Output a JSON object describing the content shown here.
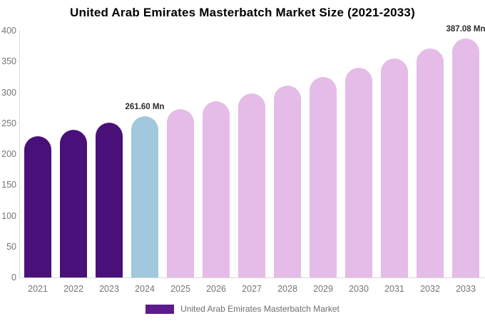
{
  "title": "United Arab Emirates Masterbatch Market Size (2021-2033)",
  "chart_data": {
    "type": "bar",
    "title": "United Arab Emirates Masterbatch Market Size (2021-2033)",
    "categories": [
      "2021",
      "2022",
      "2023",
      "2024",
      "2025",
      "2026",
      "2027",
      "2028",
      "2029",
      "2030",
      "2031",
      "2032",
      "2033"
    ],
    "values": [
      229.5,
      239.8,
      250.4,
      261.6,
      273.2,
      285.4,
      298.1,
      311.3,
      325.2,
      339.7,
      354.8,
      370.6,
      387.08
    ],
    "bar_segments": [
      "historical",
      "historical",
      "historical",
      "highlight",
      "forecast",
      "forecast",
      "forecast",
      "forecast",
      "forecast",
      "forecast",
      "forecast",
      "forecast",
      "forecast"
    ],
    "bar_labels": {
      "2024": "261.60 Mn",
      "2033": "387.08 Mn"
    },
    "xlabel": "",
    "ylabel": "",
    "ylim": [
      0,
      400
    ],
    "yticks": [
      0,
      50,
      100,
      150,
      200,
      250,
      300,
      350,
      400
    ],
    "grid": false,
    "colors": {
      "historical": "#4a1079",
      "highlight": "#a1c8dc",
      "forecast": "#e4bce7",
      "axis_line": "#d9d9d9",
      "tick_text": "#757575",
      "title_text": "#000000",
      "value_label_text": "#2b2b2b"
    },
    "legend": {
      "position": "bottom",
      "entries": [
        {
          "label": "United Arab Emirates Masterbatch Market",
          "color": "#5b1b8c"
        }
      ]
    }
  }
}
